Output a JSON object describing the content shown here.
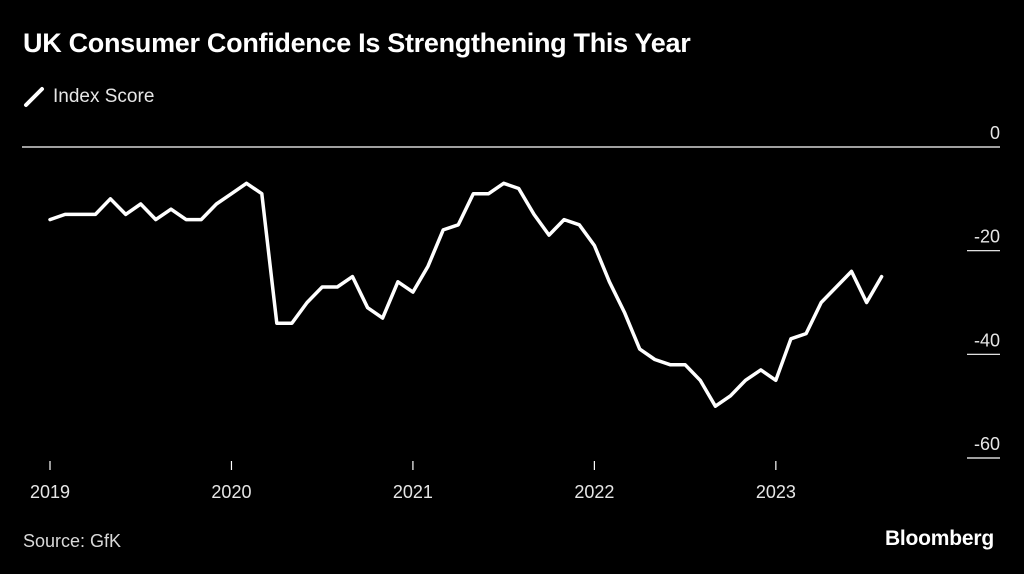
{
  "chart_data": {
    "type": "line",
    "title": "UK Consumer Confidence Is Strengthening This Year",
    "legend": [
      "Index Score"
    ],
    "xlabel": "",
    "ylabel": "",
    "x_ticks": [
      "2019",
      "2020",
      "2021",
      "2022",
      "2023"
    ],
    "y_ticks": [
      0,
      -20,
      -40,
      -60
    ],
    "ylim": [
      -60,
      0
    ],
    "x_range": [
      2019.0,
      2023.833
    ],
    "series": [
      {
        "name": "Index Score",
        "color": "#ffffff",
        "x": [
          2019.0,
          2019.083,
          2019.167,
          2019.25,
          2019.333,
          2019.417,
          2019.5,
          2019.583,
          2019.667,
          2019.75,
          2019.833,
          2019.917,
          2020.0,
          2020.083,
          2020.167,
          2020.25,
          2020.333,
          2020.417,
          2020.5,
          2020.583,
          2020.667,
          2020.75,
          2020.833,
          2020.917,
          2021.0,
          2021.083,
          2021.167,
          2021.25,
          2021.333,
          2021.417,
          2021.5,
          2021.583,
          2021.667,
          2021.75,
          2021.833,
          2021.917,
          2022.0,
          2022.083,
          2022.167,
          2022.25,
          2022.333,
          2022.417,
          2022.5,
          2022.583,
          2022.667,
          2022.75,
          2022.833,
          2022.917,
          2023.0,
          2023.083,
          2023.167,
          2023.25,
          2023.333,
          2023.417,
          2023.5,
          2023.583
        ],
        "values": [
          -14,
          -13,
          -13,
          -13,
          -10,
          -13,
          -11,
          -14,
          -12,
          -14,
          -14,
          -11,
          -9,
          -7,
          -9,
          -34,
          -34,
          -30,
          -27,
          -27,
          -25,
          -31,
          -33,
          -26,
          -28,
          -23,
          -16,
          -15,
          -9,
          -9,
          -7,
          -8,
          -13,
          -17,
          -14,
          -15,
          -19,
          -26,
          -32,
          -39,
          -41,
          -42,
          -42,
          -45,
          -50,
          -48,
          -45,
          -43,
          -45,
          -37,
          -36,
          -30,
          -27,
          -24,
          -30,
          -25
        ]
      }
    ]
  },
  "legend_label": "Index Score",
  "source": "Source: GfK",
  "brand": "Bloomberg",
  "colors": {
    "background": "#000000",
    "line": "#ffffff",
    "text": "#e6e6e6"
  }
}
